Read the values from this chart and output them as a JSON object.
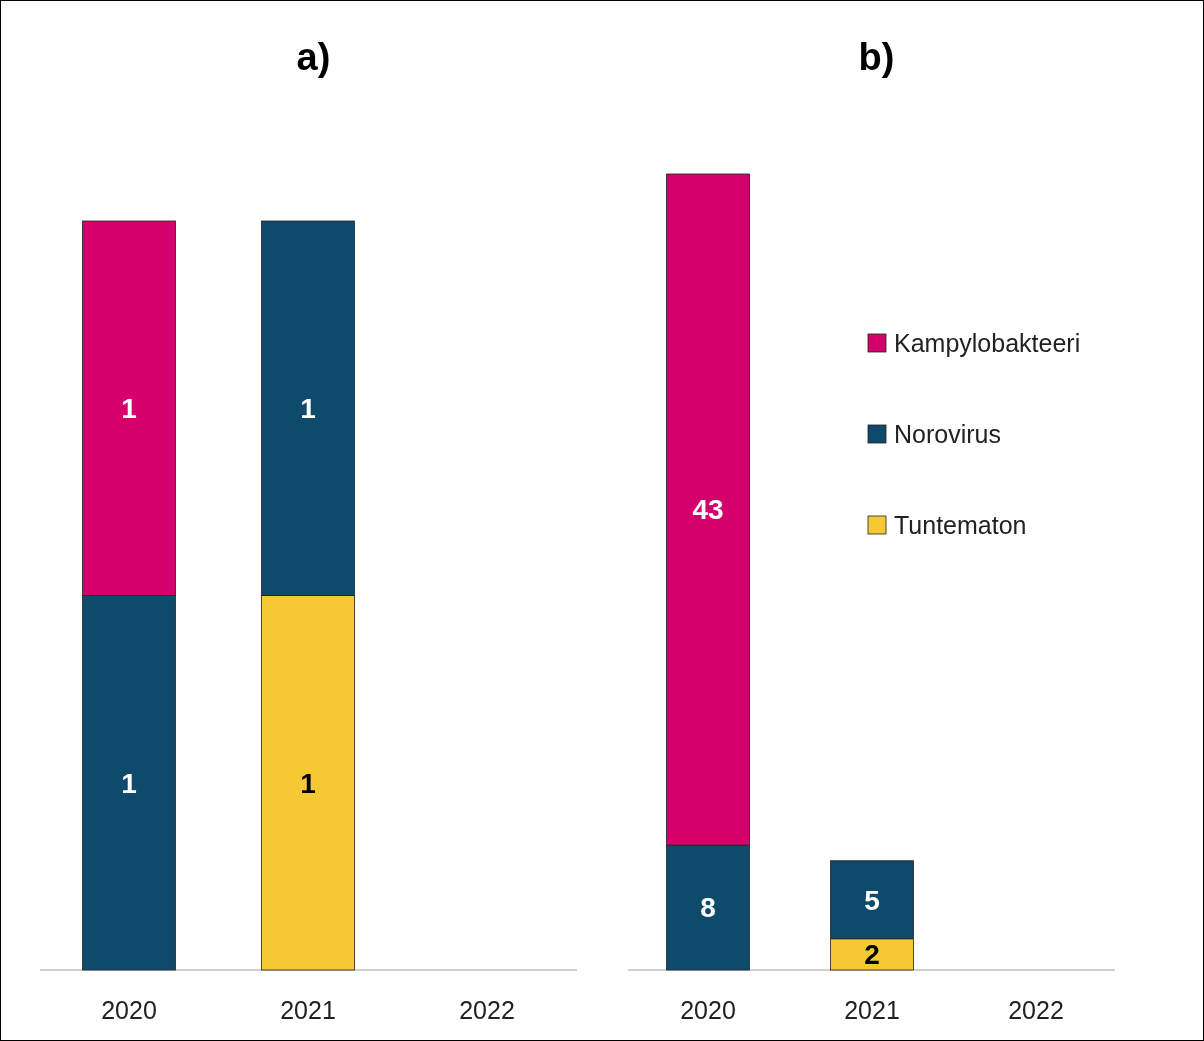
{
  "chart_data": [
    {
      "type": "bar",
      "title": "a)",
      "stacked": true,
      "data_labels": true,
      "legend": false,
      "tick_labels": "x",
      "categories": [
        "2020",
        "2021",
        "2022"
      ],
      "series": [
        {
          "color": "#f4c934",
          "values": [
            null,
            1,
            null
          ]
        },
        {
          "color": "#0e4a6c",
          "values": [
            1,
            1,
            null
          ]
        },
        {
          "color": "#d4006c",
          "values": [
            1,
            null,
            null
          ]
        }
      ]
    },
    {
      "type": "bar",
      "title": "b)",
      "stacked": true,
      "data_labels": true,
      "legend": "right",
      "tick_labels": "x",
      "categories": [
        "2020",
        "2021",
        "2022"
      ],
      "series": [
        {
          "name": "Tuntematon",
          "color": "#f4c934",
          "values": [
            null,
            2,
            null
          ]
        },
        {
          "name": "Norovirus",
          "color": "#0e4a6c",
          "values": [
            8,
            5,
            null
          ]
        },
        {
          "name": "Kampylobakteeri",
          "color": "#d4006c",
          "values": [
            43,
            null,
            null
          ]
        }
      ]
    }
  ]
}
